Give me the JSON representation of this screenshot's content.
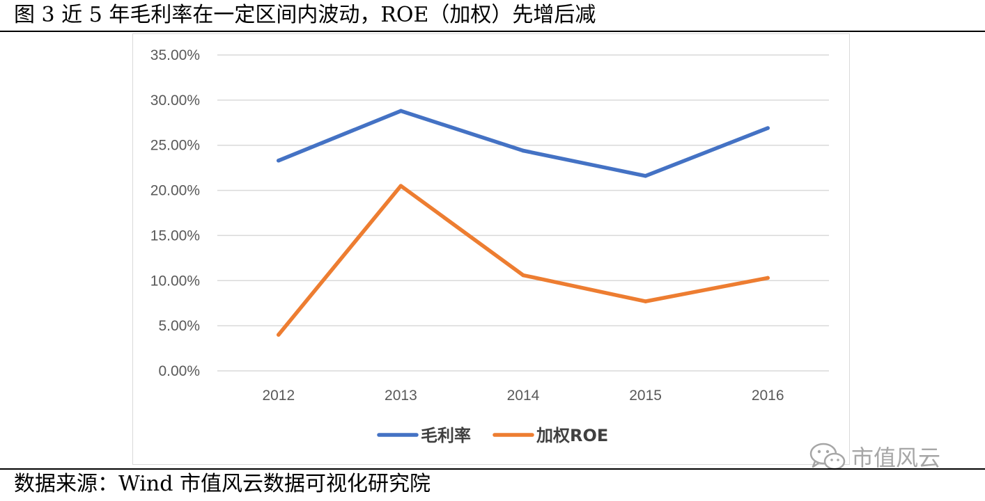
{
  "figure": {
    "title": "图 3 近 5 年毛利率在一定区间内波动，ROE（加权）先增后减",
    "source": "数据来源：Wind   市值风云数据可视化研究院",
    "watermark": "市值风云"
  },
  "chart_data": {
    "type": "line",
    "title": "",
    "xlabel": "",
    "ylabel": "",
    "categories": [
      "2012",
      "2013",
      "2014",
      "2015",
      "2016"
    ],
    "y_ticks": [
      "0.00%",
      "5.00%",
      "10.00%",
      "15.00%",
      "20.00%",
      "25.00%",
      "30.00%",
      "35.00%"
    ],
    "ylim": [
      0,
      35
    ],
    "grid": true,
    "legend_position": "bottom",
    "series": [
      {
        "name": "毛利率",
        "color": "#4472c4",
        "values": [
          23.3,
          28.8,
          24.4,
          21.6,
          26.9
        ]
      },
      {
        "name": "加权ROE",
        "color": "#ed7d31",
        "values": [
          4.0,
          20.5,
          10.6,
          7.7,
          10.3
        ]
      }
    ]
  }
}
